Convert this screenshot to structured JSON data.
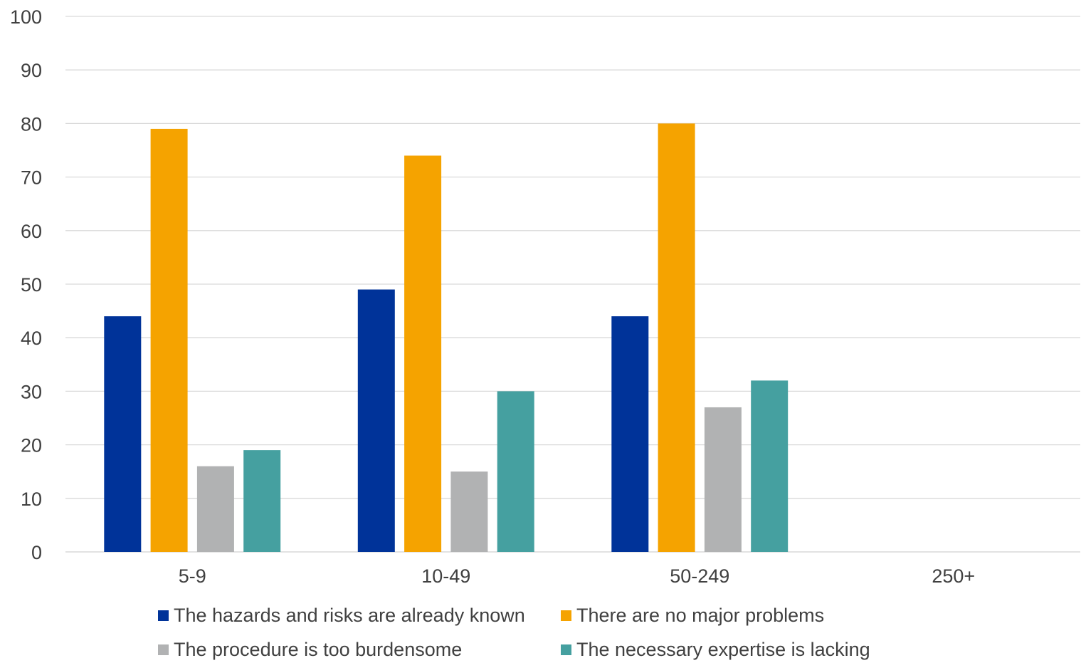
{
  "chart_data": {
    "type": "bar",
    "categories": [
      "5-9",
      "10-49",
      "50-249",
      "250+"
    ],
    "series": [
      {
        "name": "The hazards and risks are already known",
        "color": "#003399",
        "values": [
          44,
          49,
          44,
          null
        ]
      },
      {
        "name": "There are no major problems",
        "color": "#F5A300",
        "values": [
          79,
          74,
          80,
          null
        ]
      },
      {
        "name": "The procedure is too burdensome",
        "color": "#B1B2B3",
        "values": [
          16,
          15,
          27,
          null
        ]
      },
      {
        "name": "The necessary expertise is lacking",
        "color": "#45A0A0",
        "values": [
          19,
          30,
          32,
          null
        ]
      }
    ],
    "ylim": [
      0,
      100
    ],
    "yticks": [
      0,
      10,
      20,
      30,
      40,
      50,
      60,
      70,
      80,
      90,
      100
    ],
    "grid": true,
    "legend_position": "bottom"
  }
}
